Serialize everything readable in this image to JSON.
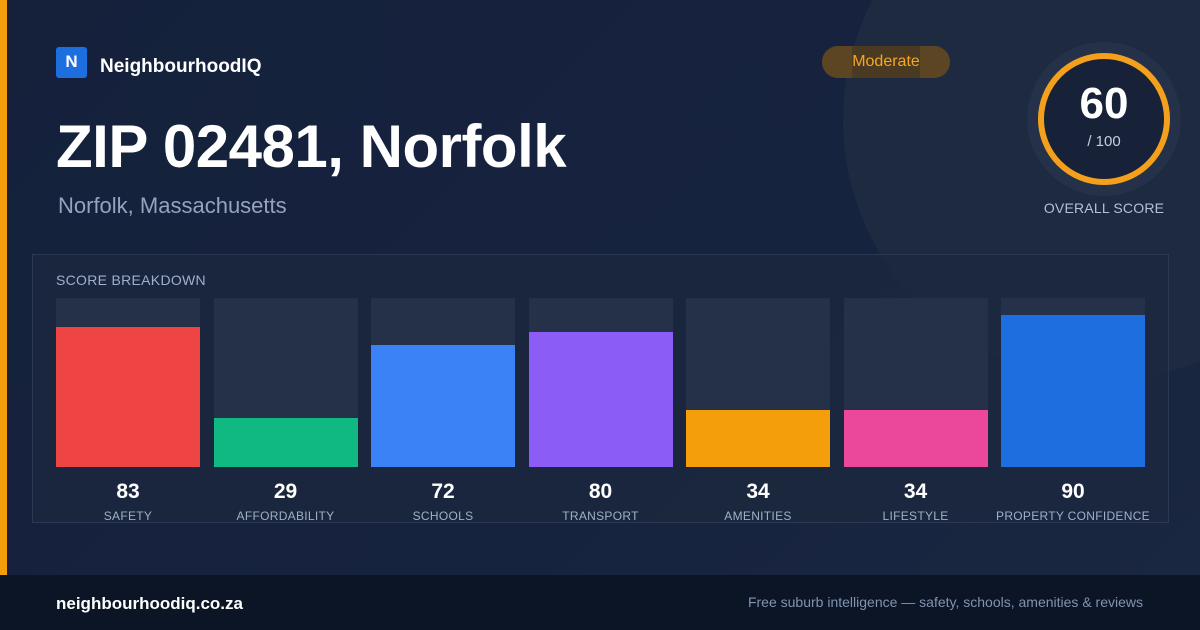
{
  "brand": {
    "logo_letter": "N",
    "name": "NeighbourhoodIQ"
  },
  "badge": {
    "label": "Moderate"
  },
  "header": {
    "title": "ZIP 02481, Norfolk",
    "subtitle": "Norfolk, Massachusetts"
  },
  "score": {
    "value": "60",
    "max": "/ 100",
    "label": "OVERALL SCORE",
    "ring_color": "#f5a01c"
  },
  "breakdown": {
    "title": "SCORE BREAKDOWN",
    "items": [
      {
        "value": "83",
        "label": "SAFETY",
        "color": "#ef4444"
      },
      {
        "value": "29",
        "label": "AFFORDABILITY",
        "color": "#10b981"
      },
      {
        "value": "72",
        "label": "SCHOOLS",
        "color": "#3b82f6"
      },
      {
        "value": "80",
        "label": "TRANSPORT",
        "color": "#8b5cf6"
      },
      {
        "value": "34",
        "label": "AMENITIES",
        "color": "#f59e0b"
      },
      {
        "value": "34",
        "label": "LIFESTYLE",
        "color": "#ec4899"
      },
      {
        "value": "90",
        "label": "PROPERTY CONFIDENCE",
        "color": "#1d6fe0"
      }
    ]
  },
  "footer": {
    "url": "neighbourhoodiq.co.za",
    "tagline": "Free suburb intelligence — safety, schools, amenities & reviews"
  }
}
